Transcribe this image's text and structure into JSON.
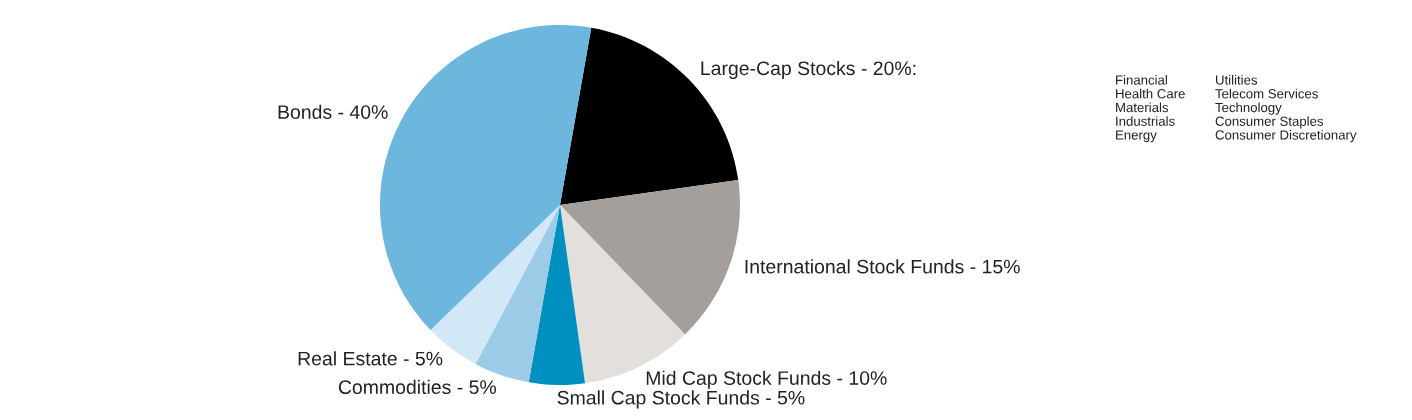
{
  "chart_data": {
    "type": "pie",
    "categories": [
      "Large-Cap Stocks",
      "International Stock Funds",
      "Mid Cap Stock Funds",
      "Small Cap Stock Funds",
      "Commodities",
      "Real Estate",
      "Bonds"
    ],
    "value_labels": [
      "20%:",
      "15%",
      "10%",
      "5%",
      "5%",
      "5%",
      "40%"
    ],
    "values": [
      20,
      15,
      10,
      5,
      5,
      5,
      40
    ],
    "colors": [
      "#000000",
      "#a59f9c",
      "#e3dfdc",
      "#0090bf",
      "#9ccbe8",
      "#d3e8f6",
      "#6db6dd"
    ],
    "annotations": [
      "Financial\nHealth Care\nMaterials\nIndustrials\nEnergy",
      "Utilities\nTelecom Services\nTechnology\nConsumer Staples\nConsumer Discretionary"
    ]
  }
}
